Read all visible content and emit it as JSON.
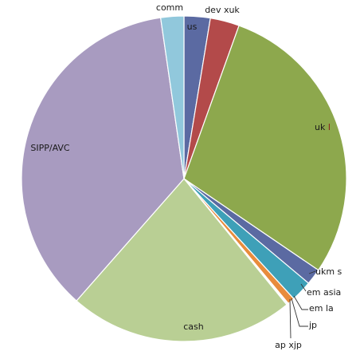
{
  "chart_data": {
    "type": "pie",
    "title": "",
    "start_angle_deg": 0,
    "direction": "clockwise",
    "slices": [
      {
        "label": "us",
        "value": 2.6,
        "color": "#5b6aa2",
        "label_color": "#1a1a1a"
      },
      {
        "label": "dev xuk",
        "value": 2.9,
        "color": "#b34a4a",
        "label_color": "#1a1a1a"
      },
      {
        "label": "uk l",
        "value": 29.0,
        "color": "#8da84d",
        "label_color": "#1a1a1a",
        "label_accent": "#8b1a1a"
      },
      {
        "label": "ukm s",
        "value": 1.6,
        "color": "#5b6aa2",
        "label_color": "#1a1a1a"
      },
      {
        "label": "em asia",
        "value": 2.1,
        "color": "#3ea0b8",
        "label_color": "#1a1a1a"
      },
      {
        "label": "em la",
        "value": 0.7,
        "color": "#e88c3c",
        "label_color": "#1a1a1a"
      },
      {
        "label": "jp",
        "value": 0.1,
        "color": "#5b6aa2",
        "label_color": "#1a1a1a"
      },
      {
        "label": "ap xjp",
        "value": 0.1,
        "color": "#3ea0b8",
        "label_color": "#1a1a1a"
      },
      {
        "label": "cash",
        "value": 22.4,
        "color": "#b9cf94",
        "label_color": "#1a1a1a"
      },
      {
        "label": "SIPP/AVC",
        "value": 36.2,
        "color": "#a89bc0",
        "label_color": "#1a1a1a"
      },
      {
        "label": "comm",
        "value": 2.3,
        "color": "#91c8dc",
        "label_color": "#1a1a1a"
      }
    ]
  }
}
